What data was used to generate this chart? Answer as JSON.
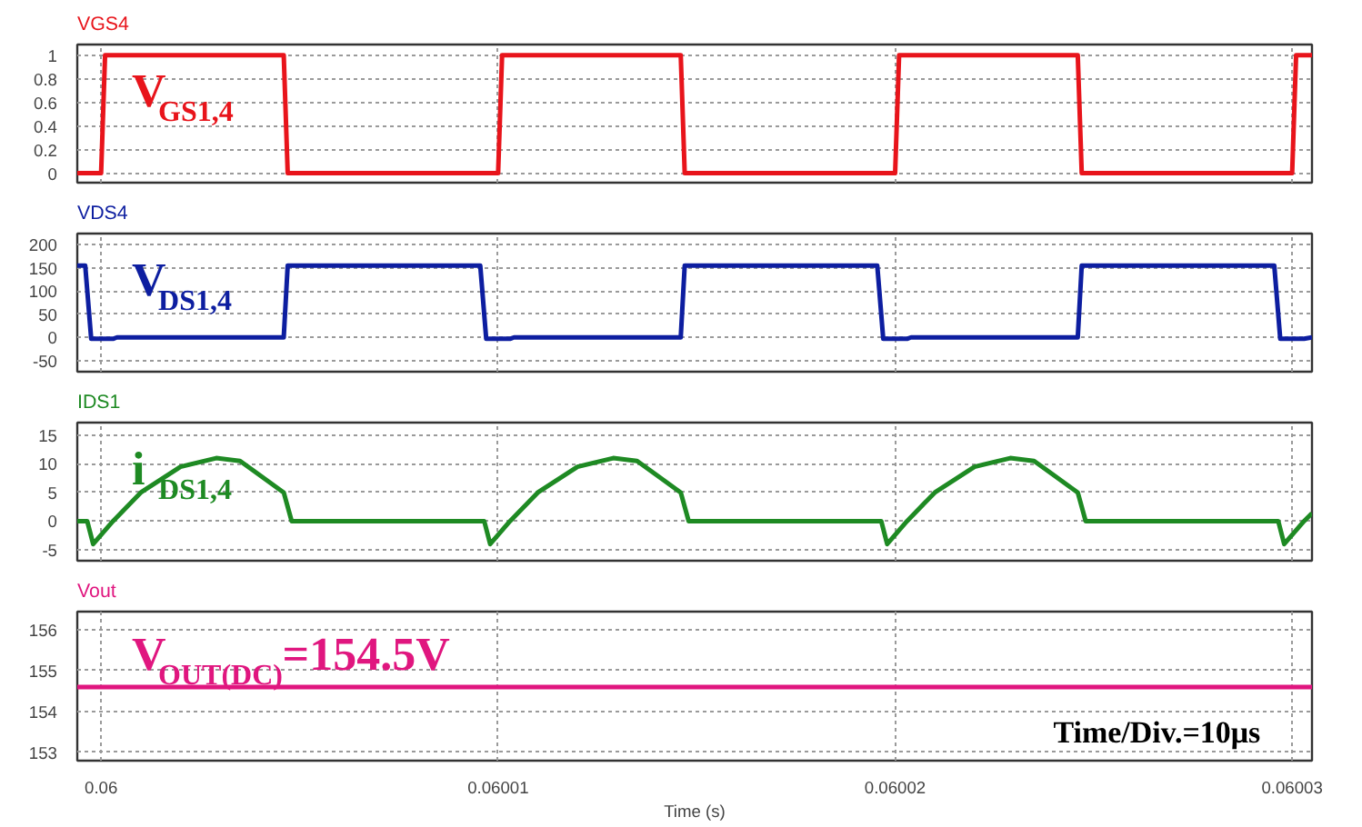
{
  "chart_data": [
    {
      "type": "line",
      "title": "VGS4",
      "annotations": [
        "V$_{GS1,4}$"
      ],
      "grid": true,
      "tick_labels": "y",
      "xlim": [
        0.0599994,
        0.0600305
      ],
      "xticks": [
        0.06,
        0.06001,
        0.06002,
        0.06003
      ],
      "ylim": [
        -0.08,
        1.09
      ],
      "yticks": [
        0,
        0.2,
        0.4,
        0.6,
        0.8,
        1
      ],
      "series": [
        {
          "color": "#e8141b",
          "x": [
            0.0599994,
            0.06,
            0.0600001,
            0.0600046,
            0.0600047,
            0.06001,
            0.0600101,
            0.0600146,
            0.0600147,
            0.06002,
            0.0600201,
            0.0600246,
            0.0600247,
            0.06003,
            0.0600301,
            0.0600305
          ],
          "values": [
            0,
            0,
            1,
            1,
            0,
            0,
            1,
            1,
            0,
            0,
            1,
            1,
            0,
            0,
            1,
            1
          ]
        }
      ]
    },
    {
      "type": "line",
      "title": "VDS4",
      "annotations": [
        "V$_{DS1,4}$"
      ],
      "grid": true,
      "tick_labels": "y",
      "xlim": [
        0.0599994,
        0.0600305
      ],
      "xticks": [
        0.06,
        0.06001,
        0.06002,
        0.06003
      ],
      "ylim": [
        -74,
        224
      ],
      "yticks": [
        -50,
        0,
        50,
        100,
        150,
        200
      ],
      "series": [
        {
          "color": "#0d1ea0",
          "x": [
            0.0599994,
            0.0599996,
            0.05999975,
            0.0600003,
            0.0600004,
            0.0600046,
            0.0600047,
            0.06000955,
            0.0600097,
            0.0600103,
            0.0600104,
            0.0600146,
            0.0600147,
            0.06001955,
            0.0600197,
            0.0600203,
            0.0600204,
            0.0600246,
            0.0600247,
            0.06002955,
            0.0600297,
            0.0600303,
            0.0600305
          ],
          "values": [
            155,
            155,
            -3,
            -3,
            0,
            0,
            155,
            155,
            -3,
            -3,
            0,
            0,
            155,
            155,
            -3,
            -3,
            0,
            0,
            155,
            155,
            -3,
            -3,
            0
          ]
        }
      ]
    },
    {
      "type": "line",
      "title": "IDS1",
      "annotations": [
        "i$_{DS1,4}$"
      ],
      "grid": true,
      "tick_labels": "y",
      "xlim": [
        0.0599994,
        0.0600305
      ],
      "xticks": [
        0.06,
        0.06001,
        0.06002,
        0.06003
      ],
      "ylim": [
        -6.9,
        17.2
      ],
      "yticks": [
        -5,
        0,
        5,
        10,
        15
      ],
      "series": [
        {
          "color": "#1e8a23",
          "x": [
            0.0599994,
            0.05999965,
            0.0599998,
            0.0600003,
            0.060001,
            0.060002,
            0.0600029,
            0.0600035,
            0.060004,
            0.0600046,
            0.0600048,
            0.06000965,
            0.0600098,
            0.0600103,
            0.060011,
            0.060012,
            0.0600129,
            0.0600135,
            0.060014,
            0.0600146,
            0.0600148,
            0.06001965,
            0.0600198,
            0.0600203,
            0.060021,
            0.060022,
            0.0600229,
            0.0600235,
            0.060024,
            0.0600246,
            0.0600248,
            0.06002965,
            0.0600298,
            0.0600303,
            0.0600305
          ],
          "values": [
            0,
            0,
            -4,
            0,
            5,
            9.5,
            11,
            10.5,
            8,
            5,
            0,
            0,
            -4,
            0,
            5,
            9.5,
            11,
            10.5,
            8,
            5,
            0,
            0,
            -4,
            0,
            5,
            9.5,
            11,
            10.5,
            8,
            5,
            0,
            0,
            -4,
            0,
            1.4
          ]
        }
      ]
    },
    {
      "type": "line",
      "title": "Vout",
      "xlabel": "Time (s)",
      "annotations": [
        "V$_{OUT(DC)}$=154.5V",
        "Time/Div.=10μs"
      ],
      "grid": true,
      "xlim": [
        0.0599994,
        0.0600305
      ],
      "xticks": [
        0.06,
        0.06001,
        0.06002,
        0.06003
      ],
      "ylim": [
        152.8,
        156.44
      ],
      "yticks": [
        153,
        154,
        155,
        156
      ],
      "series": [
        {
          "color": "#e0167f",
          "x": [
            0.0599994,
            0.0600305
          ],
          "values": [
            154.6,
            154.6
          ]
        }
      ]
    }
  ]
}
